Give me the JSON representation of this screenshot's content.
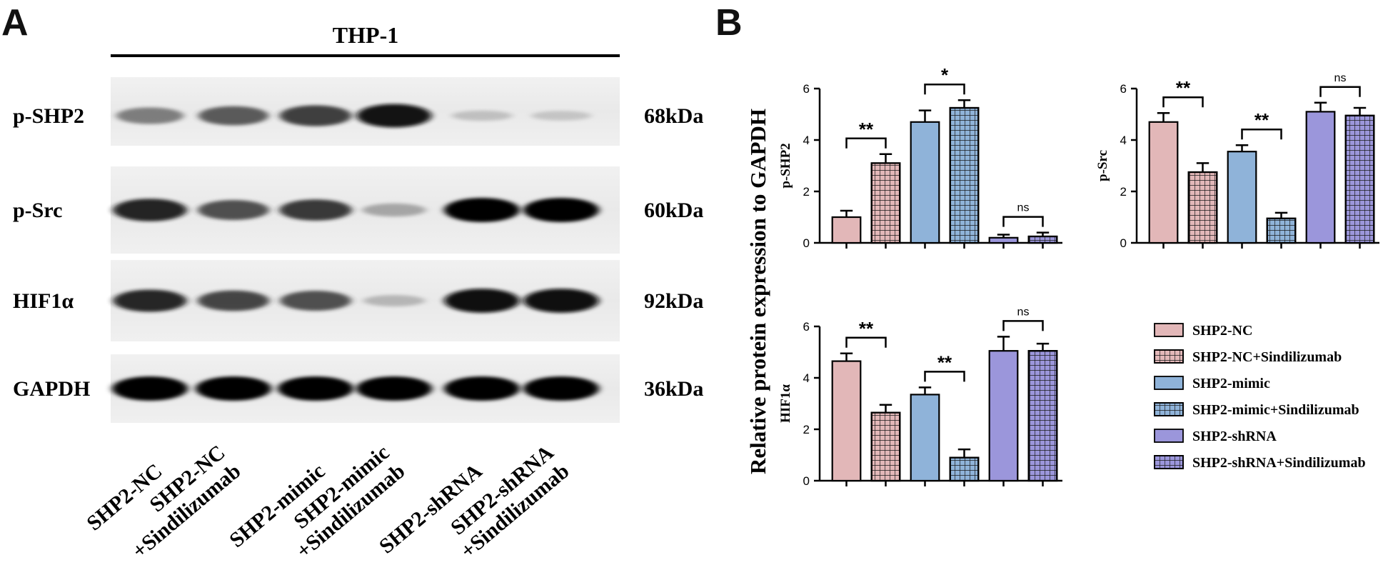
{
  "panels": {
    "a": "A",
    "b": "B"
  },
  "blot": {
    "cell_line": "THP-1",
    "rows": [
      {
        "protein": "p-SHP2",
        "size": "68kDa",
        "intensity": [
          0.55,
          0.7,
          0.8,
          0.95,
          0.18,
          0.15
        ]
      },
      {
        "protein": "p-Src",
        "size": "60kDa",
        "intensity": [
          0.9,
          0.75,
          0.82,
          0.35,
          1.0,
          1.0
        ]
      },
      {
        "protein": "HIF1α",
        "size": "92kDa",
        "intensity": [
          0.88,
          0.78,
          0.75,
          0.25,
          0.98,
          0.98
        ]
      },
      {
        "protein": "GAPDH",
        "size": "36kDa",
        "intensity": [
          1.0,
          1.0,
          1.0,
          1.0,
          1.0,
          1.0
        ]
      }
    ],
    "lanes": [
      [
        "SHP2-NC"
      ],
      [
        "SHP2-NC",
        "+Sindilizumab"
      ],
      [
        "SHP2-mimic"
      ],
      [
        "SHP2-mimic",
        "+Sindilizumab"
      ],
      [
        "SHP2-shRNA"
      ],
      [
        "SHP2-shRNA",
        "+Sindilizumab"
      ]
    ]
  },
  "chart_data": {
    "ylabel": "Relative protein expression to GAPDH",
    "legend": {
      "placement": "bottom-right",
      "entries": [
        {
          "name": "SHP2-NC",
          "color": "#e2b7b8",
          "pattern": "solid"
        },
        {
          "name": "SHP2-NC+Sindilizumab",
          "color": "#e2b7b8",
          "pattern": "grid"
        },
        {
          "name": "SHP2-mimic",
          "color": "#8fb3d9",
          "pattern": "solid"
        },
        {
          "name": "SHP2-mimic+Sindilizumab",
          "color": "#8fb3d9",
          "pattern": "grid"
        },
        {
          "name": "SHP2-shRNA",
          "color": "#9b96db",
          "pattern": "solid"
        },
        {
          "name": "SHP2-shRNA+Sindilizumab",
          "color": "#9b96db",
          "pattern": "grid"
        }
      ]
    },
    "charts": [
      {
        "type": "bar",
        "ylabel": "p-SHP2",
        "ylim": [
          0,
          6
        ],
        "yticks": [
          "0",
          "2",
          "4",
          "6"
        ],
        "values": [
          1.0,
          3.1,
          4.7,
          5.25,
          0.2,
          0.25
        ],
        "errors": [
          0.25,
          0.35,
          0.45,
          0.3,
          0.12,
          0.15
        ],
        "comparisons": [
          {
            "pair": [
              0,
              1
            ],
            "label": "**"
          },
          {
            "pair": [
              2,
              3
            ],
            "label": "*"
          },
          {
            "pair": [
              4,
              5
            ],
            "label": "ns"
          }
        ]
      },
      {
        "type": "bar",
        "ylabel": "p-Src",
        "ylim": [
          0,
          6
        ],
        "yticks": [
          "0",
          "2",
          "4",
          "6"
        ],
        "values": [
          4.7,
          2.75,
          3.55,
          0.95,
          5.1,
          4.95
        ],
        "errors": [
          0.35,
          0.35,
          0.25,
          0.22,
          0.35,
          0.3
        ],
        "comparisons": [
          {
            "pair": [
              0,
              1
            ],
            "label": "**"
          },
          {
            "pair": [
              2,
              3
            ],
            "label": "**"
          },
          {
            "pair": [
              4,
              5
            ],
            "label": "ns"
          }
        ]
      },
      {
        "type": "bar",
        "ylabel": "HIF1α",
        "ylim": [
          0,
          6
        ],
        "yticks": [
          "0",
          "2",
          "4",
          "6"
        ],
        "values": [
          4.65,
          2.65,
          3.35,
          0.9,
          5.05,
          5.05
        ],
        "errors": [
          0.3,
          0.3,
          0.28,
          0.32,
          0.55,
          0.28
        ],
        "comparisons": [
          {
            "pair": [
              0,
              1
            ],
            "label": "**"
          },
          {
            "pair": [
              2,
              3
            ],
            "label": "**"
          },
          {
            "pair": [
              4,
              5
            ],
            "label": "ns"
          }
        ]
      }
    ]
  }
}
